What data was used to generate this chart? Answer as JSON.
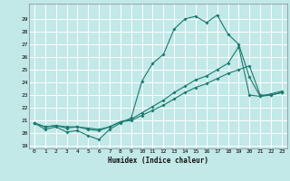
{
  "xlabel": "Humidex (Indice chaleur)",
  "background_color": "#c2e8e8",
  "grid_color": "#ffffff",
  "line_color": "#1a7a6e",
  "xlim": [
    -0.5,
    23.5
  ],
  "ylim": [
    18.8,
    30.2
  ],
  "yticks": [
    19,
    20,
    21,
    22,
    23,
    24,
    25,
    26,
    27,
    28,
    29
  ],
  "xticks": [
    0,
    1,
    2,
    3,
    4,
    5,
    6,
    7,
    8,
    9,
    10,
    11,
    12,
    13,
    14,
    15,
    16,
    17,
    18,
    19,
    20,
    21,
    22,
    23
  ],
  "line1_x": [
    0,
    1,
    2,
    3,
    4,
    5,
    6,
    7,
    8,
    9,
    10,
    11,
    12,
    13,
    14,
    15,
    16,
    17,
    18,
    19,
    20,
    21,
    22,
    23
  ],
  "line1_y": [
    20.8,
    20.3,
    20.5,
    20.1,
    20.2,
    19.8,
    19.5,
    20.3,
    20.8,
    21.2,
    24.1,
    25.5,
    26.2,
    28.2,
    29.0,
    29.2,
    28.7,
    29.3,
    27.8,
    27.0,
    24.4,
    22.9,
    23.0,
    23.2
  ],
  "line2_x": [
    0,
    1,
    2,
    3,
    4,
    5,
    6,
    7,
    8,
    9,
    10,
    11,
    12,
    13,
    14,
    15,
    16,
    17,
    18,
    19,
    20,
    21,
    22,
    23
  ],
  "line2_y": [
    20.8,
    20.5,
    20.6,
    20.5,
    20.5,
    20.4,
    20.3,
    20.5,
    20.9,
    21.1,
    21.6,
    22.1,
    22.6,
    23.2,
    23.7,
    24.2,
    24.5,
    25.0,
    25.5,
    26.8,
    23.0,
    22.9,
    23.1,
    23.3
  ],
  "line3_x": [
    0,
    1,
    2,
    3,
    4,
    5,
    6,
    7,
    8,
    9,
    10,
    11,
    12,
    13,
    14,
    15,
    16,
    17,
    18,
    19,
    20,
    21,
    22,
    23
  ],
  "line3_y": [
    20.8,
    20.5,
    20.6,
    20.4,
    20.5,
    20.3,
    20.2,
    20.5,
    20.9,
    21.0,
    21.4,
    21.8,
    22.2,
    22.7,
    23.2,
    23.6,
    23.9,
    24.3,
    24.7,
    25.0,
    25.3,
    23.0,
    23.0,
    23.2
  ]
}
